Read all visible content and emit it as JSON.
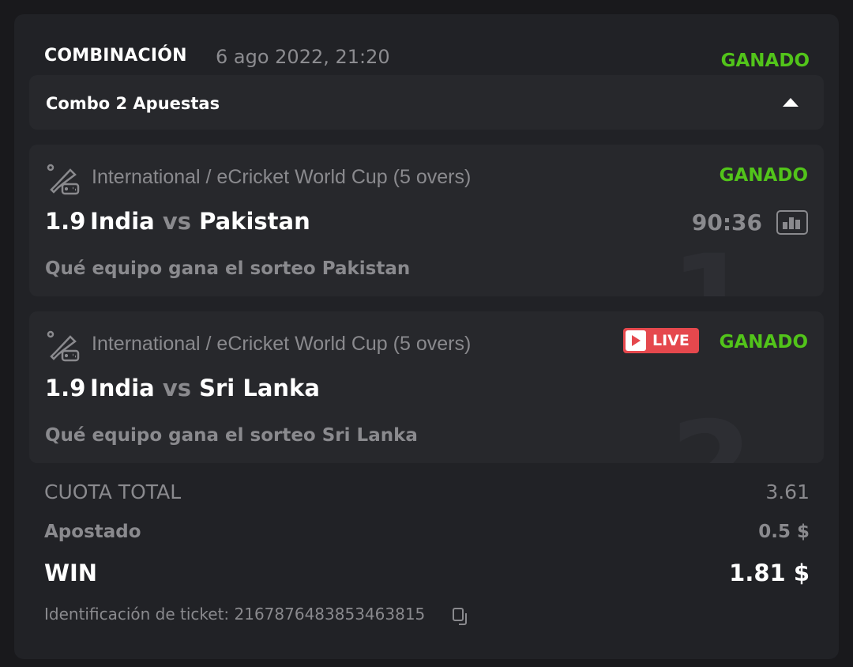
{
  "header": {
    "title": "COMBINACIÓN",
    "date": "6 ago 2022, 21:20",
    "status": "GANADO"
  },
  "combo": {
    "title": "Combo 2 Apuestas",
    "toggle_icon": "caret-up-icon"
  },
  "bets": [
    {
      "index": "1",
      "league": "International / eCricket World Cup (5 overs)",
      "status": "GANADO",
      "odds": "1.9",
      "home": "India",
      "vs": "vs",
      "away": "Pakistan",
      "market": "Qué equipo gana el sorteo Pakistan",
      "time": "90:36",
      "live": false
    },
    {
      "index": "2",
      "league": "International / eCricket World Cup (5 overs)",
      "status": "GANADO",
      "odds": "1.9",
      "home": "India",
      "vs": "vs",
      "away": "Sri Lanka",
      "market": "Qué equipo gana el sorteo Sri Lanka",
      "live": true,
      "live_label": "LIVE"
    }
  ],
  "summary": {
    "total_odds_label": "CUOTA TOTAL",
    "total_odds": "3.61",
    "staked_label": "Apostado",
    "staked": "0.5 $",
    "win_label": "WIN",
    "win": "1.81 $"
  },
  "ticket": {
    "label": "Identificación de ticket: 2167876483853463815"
  },
  "colors": {
    "won": "#52c41a",
    "live": "#e5484d"
  }
}
